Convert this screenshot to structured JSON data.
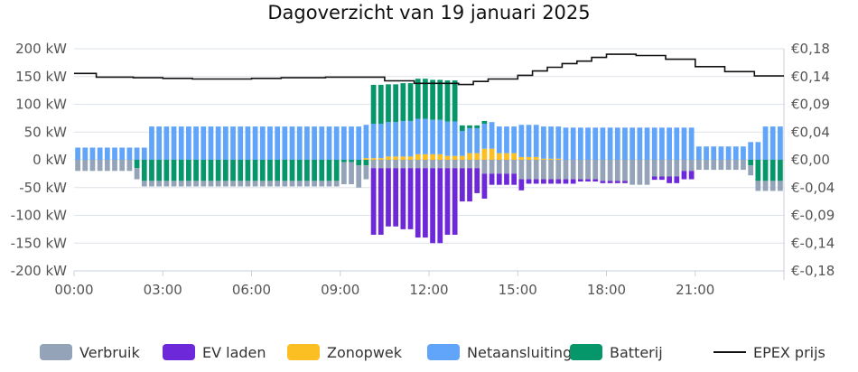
{
  "chart_data": {
    "type": "bar",
    "title": "Dagoverzicht van 19 januari 2025",
    "interval_minutes": 15,
    "categories_note": "",
    "y_left": {
      "ticks": [
        200,
        150,
        100,
        50,
        0,
        -50,
        -100,
        -150,
        -200
      ],
      "tick_labels": [
        "200 kW",
        "150 kW",
        "100 kW",
        "50 kW",
        "0 kW",
        "-50 kW",
        "-100 kW",
        "-150 kW",
        "-200 kW"
      ],
      "ylim": [
        -200,
        200
      ]
    },
    "y_right": {
      "tick_labels": [
        "€0,18",
        "€0,14",
        "€0,09",
        "€0,04",
        "€0,00",
        "€-0,04",
        "€-0,09",
        "€-0,14",
        "€-0,18"
      ],
      "ylim": [
        -0.18,
        0.18
      ]
    },
    "x_ticks": [
      "00:00",
      "03:00",
      "06:00",
      "09:00",
      "12:00",
      "15:00",
      "18:00",
      "21:00"
    ],
    "grid": true,
    "legend_position": "bottom",
    "series": [
      {
        "name": "Verbruik",
        "color": "#94a3b8",
        "stack": "negative",
        "profile": [
          {
            "from": 0,
            "to": 2.25,
            "value": -20
          },
          {
            "from": 2.25,
            "to": 9.0,
            "value": -10
          },
          {
            "from": 9.0,
            "to": 9.75,
            "value": -40
          },
          {
            "from": 9.75,
            "to": 10.0,
            "value": -25
          },
          {
            "from": 10.0,
            "to": 13.75,
            "value": -15
          },
          {
            "from": 13.75,
            "to": 15.0,
            "value": -25
          },
          {
            "from": 15.0,
            "to": 17.75,
            "value": -35
          },
          {
            "from": 17.75,
            "to": 18.75,
            "value": -38
          },
          {
            "from": 18.75,
            "to": 19.5,
            "value": -45
          },
          {
            "from": 19.5,
            "to": 20.5,
            "value": -30
          },
          {
            "from": 20.5,
            "to": 21.0,
            "value": -20
          },
          {
            "from": 21.0,
            "to": 24.0,
            "value": -18
          }
        ]
      },
      {
        "name": "EV laden",
        "color": "#6d28d9",
        "stack": "negative",
        "profile": [
          {
            "from": 10.0,
            "to": 10.5,
            "value": -120
          },
          {
            "from": 10.5,
            "to": 11.0,
            "value": -105
          },
          {
            "from": 11.0,
            "to": 11.5,
            "value": -110
          },
          {
            "from": 11.5,
            "to": 12.0,
            "value": -125
          },
          {
            "from": 12.0,
            "to": 12.5,
            "value": -135
          },
          {
            "from": 12.5,
            "to": 13.0,
            "value": -120
          },
          {
            "from": 13.0,
            "to": 13.5,
            "value": -60
          },
          {
            "from": 13.5,
            "to": 14.0,
            "value": -45
          },
          {
            "from": 14.0,
            "to": 15.25,
            "value": -20
          },
          {
            "from": 15.25,
            "to": 17.0,
            "value": -8
          },
          {
            "from": 17.0,
            "to": 18.75,
            "value": -4
          },
          {
            "from": 19.5,
            "to": 20.0,
            "value": -6
          },
          {
            "from": 20.0,
            "to": 20.5,
            "value": -12
          },
          {
            "from": 20.5,
            "to": 21.0,
            "value": -15
          }
        ]
      },
      {
        "name": "Zonopwek",
        "color": "#fbbf24",
        "stack": "positive",
        "profile": [
          {
            "from": 9.75,
            "to": 10.5,
            "value": 3
          },
          {
            "from": 10.5,
            "to": 11.5,
            "value": 6
          },
          {
            "from": 11.5,
            "to": 12.5,
            "value": 10
          },
          {
            "from": 12.5,
            "to": 13.25,
            "value": 7
          },
          {
            "from": 13.25,
            "to": 13.75,
            "value": 12
          },
          {
            "from": 13.75,
            "to": 14.25,
            "value": 20
          },
          {
            "from": 14.25,
            "to": 15.0,
            "value": 12
          },
          {
            "from": 15.0,
            "to": 15.75,
            "value": 5
          },
          {
            "from": 15.75,
            "to": 16.5,
            "value": 2
          }
        ]
      },
      {
        "name": "Netaansluiting",
        "color": "#60a5fa",
        "stack": "both",
        "profile": [
          {
            "from": 0,
            "to": 2.5,
            "value": 22
          },
          {
            "from": 2.5,
            "to": 9.75,
            "value": 60
          },
          {
            "from": 9.75,
            "to": 10.0,
            "value": 60
          },
          {
            "from": 10.0,
            "to": 11.0,
            "value": 62
          },
          {
            "from": 11.0,
            "to": 12.0,
            "value": 64
          },
          {
            "from": 12.0,
            "to": 13.0,
            "value": 62
          },
          {
            "from": 13.0,
            "to": 14.0,
            "value": 45
          },
          {
            "from": 14.0,
            "to": 15.0,
            "value": 48
          },
          {
            "from": 15.0,
            "to": 21.0,
            "value": 58
          },
          {
            "from": 21.0,
            "to": 22.75,
            "value": 24
          },
          {
            "from": 22.75,
            "to": 23.25,
            "value": 32
          },
          {
            "from": 23.25,
            "to": 24.0,
            "value": 60
          }
        ]
      },
      {
        "name": "Batterij",
        "color": "#059669",
        "stack": "both",
        "profile": [
          {
            "from": 2.0,
            "to": 2.25,
            "value": -15
          },
          {
            "from": 2.25,
            "to": 9.0,
            "value": -38
          },
          {
            "from": 9.0,
            "to": 9.5,
            "value": -4
          },
          {
            "from": 9.5,
            "to": 10.0,
            "value": -10
          },
          {
            "from": 10.0,
            "to": 10.5,
            "value": 70
          },
          {
            "from": 10.5,
            "to": 11.5,
            "value": 68
          },
          {
            "from": 11.5,
            "to": 12.0,
            "value": 72
          },
          {
            "from": 12.0,
            "to": 12.5,
            "value": 72
          },
          {
            "from": 12.5,
            "to": 13.0,
            "value": 74
          },
          {
            "from": 13.0,
            "to": 13.25,
            "value": 10
          },
          {
            "from": 13.25,
            "to": 14.0,
            "value": 5
          },
          {
            "from": 22.75,
            "to": 23.0,
            "value": -10
          },
          {
            "from": 23.0,
            "to": 24.0,
            "value": -38
          }
        ]
      },
      {
        "name": "EPEX prijs",
        "color": "#111111",
        "type": "line",
        "axis": "right",
        "points": [
          [
            0,
            0.14
          ],
          [
            0.75,
            0.14
          ],
          [
            0.75,
            0.134
          ],
          [
            2.0,
            0.134
          ],
          [
            2.0,
            0.133
          ],
          [
            3.0,
            0.133
          ],
          [
            3.0,
            0.132
          ],
          [
            4.0,
            0.132
          ],
          [
            4.0,
            0.131
          ],
          [
            6.0,
            0.131
          ],
          [
            6.0,
            0.132
          ],
          [
            7.0,
            0.132
          ],
          [
            7.0,
            0.133
          ],
          [
            8.5,
            0.133
          ],
          [
            8.5,
            0.134
          ],
          [
            10.5,
            0.134
          ],
          [
            10.5,
            0.128
          ],
          [
            11.5,
            0.128
          ],
          [
            11.5,
            0.124
          ],
          [
            13.0,
            0.124
          ],
          [
            13.0,
            0.122
          ],
          [
            13.5,
            0.122
          ],
          [
            13.5,
            0.127
          ],
          [
            14.0,
            0.127
          ],
          [
            14.0,
            0.131
          ],
          [
            15.0,
            0.131
          ],
          [
            15.0,
            0.137
          ],
          [
            15.5,
            0.137
          ],
          [
            15.5,
            0.144
          ],
          [
            16.0,
            0.144
          ],
          [
            16.0,
            0.15
          ],
          [
            16.5,
            0.15
          ],
          [
            16.5,
            0.156
          ],
          [
            17.0,
            0.156
          ],
          [
            17.0,
            0.16
          ],
          [
            17.5,
            0.16
          ],
          [
            17.5,
            0.166
          ],
          [
            18.0,
            0.166
          ],
          [
            18.0,
            0.171
          ],
          [
            19.0,
            0.171
          ],
          [
            19.0,
            0.169
          ],
          [
            20.0,
            0.169
          ],
          [
            20.0,
            0.163
          ],
          [
            21.0,
            0.163
          ],
          [
            21.0,
            0.151
          ],
          [
            22.0,
            0.151
          ],
          [
            22.0,
            0.143
          ],
          [
            23.0,
            0.143
          ],
          [
            23.0,
            0.136
          ],
          [
            24.0,
            0.136
          ]
        ]
      }
    ]
  }
}
